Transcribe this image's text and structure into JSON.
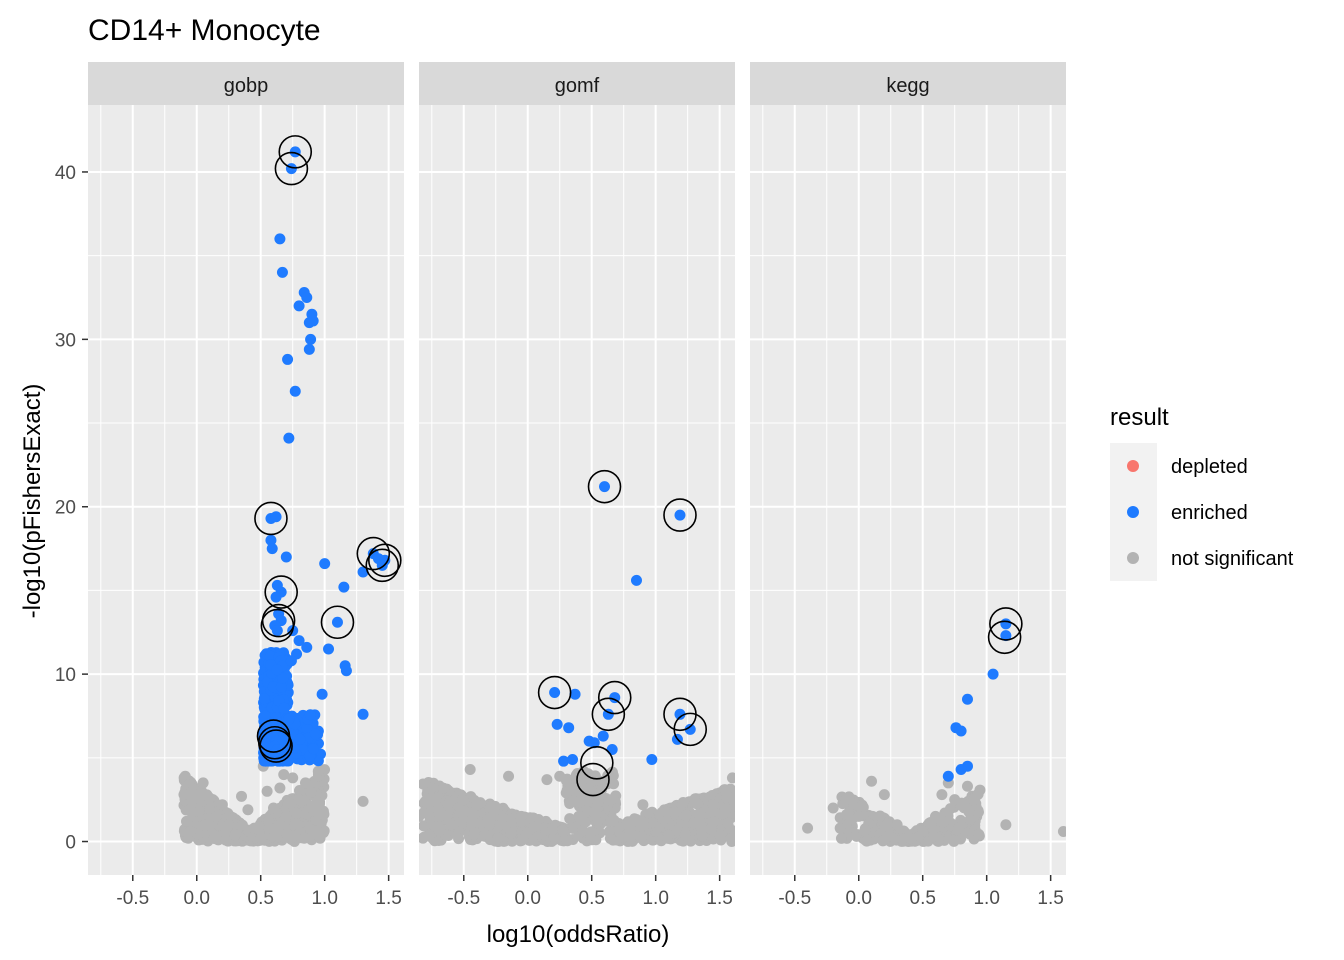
{
  "chart_data": {
    "type": "scatter",
    "title": "CD14+ Monocyte",
    "xlabel": "log10(oddsRatio)",
    "ylabel": "-log10(pFishersExact)",
    "xlim": [
      -0.85,
      1.62
    ],
    "ylim": [
      -2,
      44
    ],
    "x_ticks": [
      -0.5,
      0.0,
      0.5,
      1.0,
      1.5
    ],
    "x_tick_labels": [
      "-0.5",
      "0.0",
      "0.5",
      "1.0",
      "1.5"
    ],
    "y_ticks": [
      0,
      10,
      20,
      30,
      40
    ],
    "y_tick_labels": [
      "0",
      "10",
      "20",
      "30",
      "40"
    ],
    "grid": true,
    "legend": {
      "title": "result",
      "position": "right",
      "entries": [
        {
          "label": "depleted",
          "color": "#F8766D"
        },
        {
          "label": "enriched",
          "color": "#1F7BFF"
        },
        {
          "label": "not significant",
          "color": "#B3B3B3"
        }
      ]
    },
    "colors": {
      "enriched": "#1F7BFF",
      "depleted": "#F8766D",
      "not_significant": "#B3B3B3",
      "panel_bg": "#EBEBEB",
      "strip_bg": "#D9D9D9",
      "grid": "#FFFFFF"
    },
    "facets": [
      {
        "label": "gobp",
        "enriched": [
          [
            0.77,
            41.2
          ],
          [
            0.74,
            40.2
          ],
          [
            0.65,
            36.0
          ],
          [
            0.67,
            34.0
          ],
          [
            0.84,
            32.8
          ],
          [
            0.86,
            32.5
          ],
          [
            0.8,
            32.0
          ],
          [
            0.9,
            31.5
          ],
          [
            0.88,
            31.0
          ],
          [
            0.91,
            31.1
          ],
          [
            0.89,
            30.0
          ],
          [
            0.88,
            29.4
          ],
          [
            0.71,
            28.8
          ],
          [
            0.77,
            26.9
          ],
          [
            0.72,
            24.1
          ],
          [
            0.58,
            19.3
          ],
          [
            0.62,
            19.4
          ],
          [
            0.58,
            18.0
          ],
          [
            0.59,
            17.5
          ],
          [
            0.7,
            17.0
          ],
          [
            1.0,
            16.6
          ],
          [
            1.38,
            17.2
          ],
          [
            1.42,
            16.9
          ],
          [
            1.47,
            16.8
          ],
          [
            1.45,
            16.5
          ],
          [
            1.3,
            16.1
          ],
          [
            1.15,
            15.2
          ],
          [
            0.63,
            15.3
          ],
          [
            0.66,
            14.9
          ],
          [
            0.62,
            14.6
          ],
          [
            0.64,
            13.6
          ],
          [
            0.66,
            13.2
          ],
          [
            0.61,
            12.9
          ],
          [
            0.63,
            12.6
          ],
          [
            1.1,
            13.1
          ],
          [
            0.75,
            12.6
          ],
          [
            0.8,
            12.0
          ],
          [
            0.86,
            11.6
          ],
          [
            0.78,
            11.2
          ],
          [
            1.03,
            11.5
          ],
          [
            0.74,
            10.8
          ],
          [
            1.16,
            10.5
          ],
          [
            1.17,
            10.2
          ],
          [
            0.98,
            8.8
          ],
          [
            1.3,
            7.6
          ],
          [
            0.6,
            6.3
          ],
          [
            0.62,
            6.0
          ],
          [
            0.61,
            5.7
          ],
          [
            0.63,
            5.5
          ]
        ],
        "not_significant": [
          [
            -0.1,
            2.8
          ],
          [
            -0.04,
            2.0
          ],
          [
            0.05,
            3.5
          ],
          [
            -0.08,
            1.2
          ],
          [
            -0.05,
            0.6
          ],
          [
            0.02,
            1.8
          ],
          [
            0.1,
            2.6
          ],
          [
            0.15,
            1.5
          ],
          [
            0.2,
            2.2
          ],
          [
            0.25,
            1.0
          ],
          [
            0.3,
            0.4
          ],
          [
            0.35,
            2.7
          ],
          [
            0.4,
            1.9
          ],
          [
            0.45,
            0.8
          ],
          [
            0.5,
            0.2
          ],
          [
            0.55,
            3.0
          ],
          [
            0.6,
            2.0
          ],
          [
            0.65,
            3.2
          ],
          [
            0.7,
            1.5
          ],
          [
            0.75,
            3.8
          ],
          [
            0.8,
            2.5
          ],
          [
            0.85,
            3.5
          ],
          [
            0.9,
            2.0
          ],
          [
            0.95,
            4.2
          ],
          [
            1.3,
            2.4
          ],
          [
            0.52,
            4.5
          ],
          [
            0.58,
            4.8
          ],
          [
            0.68,
            4.0
          ]
        ],
        "circled": [
          [
            0.77,
            41.2
          ],
          [
            0.74,
            40.2
          ],
          [
            0.58,
            19.3
          ],
          [
            1.38,
            17.2
          ],
          [
            1.47,
            16.8
          ],
          [
            1.45,
            16.5
          ],
          [
            0.66,
            14.9
          ],
          [
            0.64,
            13.2
          ],
          [
            0.63,
            12.9
          ],
          [
            1.1,
            13.1
          ],
          [
            0.6,
            6.3
          ],
          [
            0.61,
            5.9
          ],
          [
            0.62,
            5.7
          ]
        ]
      },
      {
        "label": "gomf",
        "enriched": [
          [
            0.6,
            21.2
          ],
          [
            1.19,
            19.5
          ],
          [
            0.85,
            15.6
          ],
          [
            0.68,
            8.6
          ],
          [
            0.21,
            8.9
          ],
          [
            0.37,
            8.8
          ],
          [
            0.63,
            7.6
          ],
          [
            1.19,
            7.6
          ],
          [
            1.27,
            6.7
          ],
          [
            0.23,
            7.0
          ],
          [
            0.32,
            6.8
          ],
          [
            0.59,
            6.3
          ],
          [
            1.17,
            6.1
          ],
          [
            0.48,
            6.0
          ],
          [
            0.52,
            5.9
          ],
          [
            0.28,
            4.8
          ],
          [
            0.35,
            4.9
          ],
          [
            0.97,
            4.9
          ],
          [
            0.66,
            5.5
          ]
        ],
        "not_significant": [
          [
            -0.85,
            1.5
          ],
          [
            -0.8,
            2.4
          ],
          [
            -0.7,
            1.9
          ],
          [
            -0.6,
            1.0
          ],
          [
            -0.45,
            4.3
          ],
          [
            -0.4,
            2.2
          ],
          [
            -0.3,
            1.0
          ],
          [
            -0.15,
            3.9
          ],
          [
            -0.05,
            1.5
          ],
          [
            0.05,
            0.9
          ],
          [
            0.15,
            3.7
          ],
          [
            0.25,
            3.9
          ],
          [
            0.35,
            2.4
          ],
          [
            0.5,
            3.6
          ],
          [
            0.55,
            2.4
          ],
          [
            0.65,
            1.2
          ],
          [
            0.8,
            0.6
          ],
          [
            0.9,
            2.2
          ],
          [
            1.1,
            0.4
          ],
          [
            1.3,
            1.1
          ],
          [
            1.45,
            2.2
          ],
          [
            1.55,
            3.0
          ],
          [
            1.6,
            3.8
          ],
          [
            -0.82,
            0.2
          ]
        ],
        "circled": [
          [
            0.6,
            21.2
          ],
          [
            1.19,
            19.5
          ],
          [
            0.21,
            8.9
          ],
          [
            0.68,
            8.6
          ],
          [
            0.63,
            7.6
          ],
          [
            1.19,
            7.6
          ],
          [
            1.27,
            6.7
          ],
          [
            0.54,
            4.7
          ],
          [
            0.51,
            3.7
          ]
        ]
      },
      {
        "label": "kegg",
        "enriched": [
          [
            1.15,
            13.0
          ],
          [
            1.15,
            12.3
          ],
          [
            1.05,
            10.0
          ],
          [
            0.85,
            8.5
          ],
          [
            0.76,
            6.8
          ],
          [
            0.8,
            6.6
          ],
          [
            0.85,
            4.5
          ],
          [
            0.8,
            4.3
          ],
          [
            0.7,
            3.9
          ]
        ],
        "not_significant": [
          [
            -0.4,
            0.8
          ],
          [
            -0.2,
            2.0
          ],
          [
            -0.1,
            2.5
          ],
          [
            0.0,
            1.5
          ],
          [
            0.1,
            3.6
          ],
          [
            0.2,
            2.8
          ],
          [
            0.3,
            1.0
          ],
          [
            0.4,
            0.2
          ],
          [
            0.5,
            0.6
          ],
          [
            0.6,
            1.5
          ],
          [
            0.65,
            2.8
          ],
          [
            0.7,
            3.5
          ],
          [
            0.75,
            2.5
          ],
          [
            0.85,
            3.3
          ],
          [
            0.9,
            2.5
          ],
          [
            1.15,
            1.0
          ],
          [
            1.6,
            0.6
          ],
          [
            0.05,
            0.7
          ]
        ],
        "circled": [
          [
            1.15,
            13.0
          ],
          [
            1.14,
            12.2
          ]
        ]
      }
    ]
  }
}
